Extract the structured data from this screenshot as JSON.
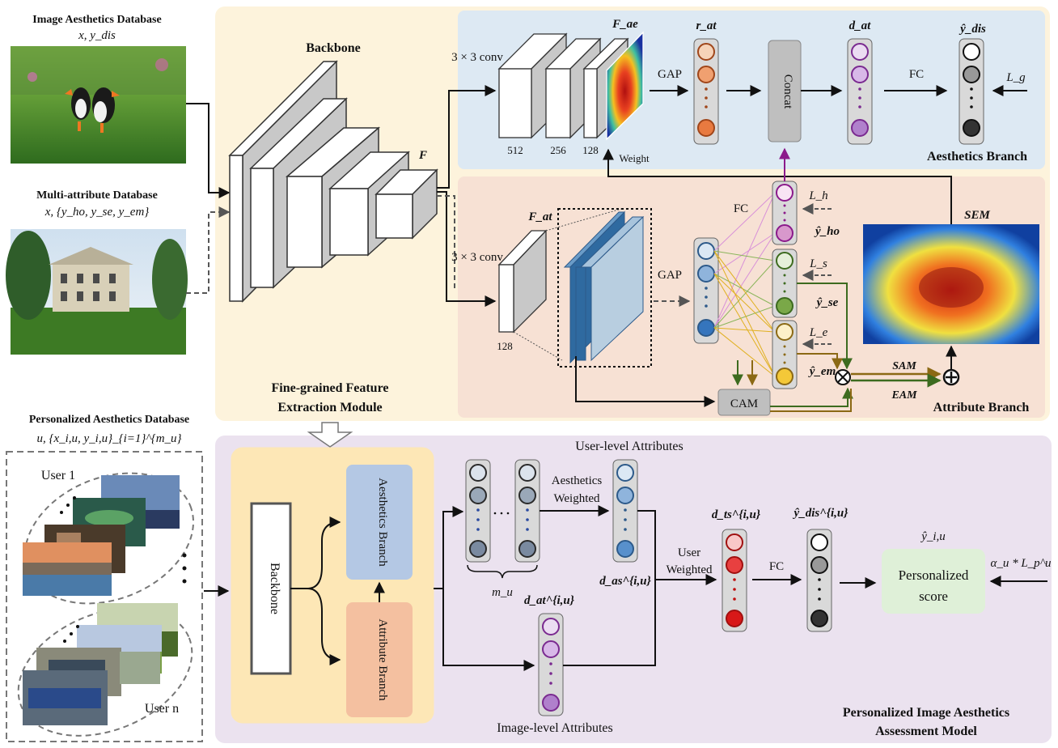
{
  "datasets": {
    "image_aesthetics": {
      "title": "Image Aesthetics Database",
      "vars": "x, y_dis"
    },
    "multi_attribute": {
      "title": "Multi-attribute Database",
      "vars": "x, {y_ho, y_se, y_em}"
    },
    "personalized": {
      "title": "Personalized Aesthetics Database",
      "vars": "u, {x_i,u, y_i,u}_{i=1}^{m_u}"
    }
  },
  "users": {
    "first": "User 1",
    "last": "User n"
  },
  "feature_module": {
    "backbone": "Backbone",
    "feature_label": "F",
    "title_line1": "Fine-grained Feature",
    "title_line2": "Extraction Module"
  },
  "aesthetics_branch": {
    "title": "Aesthetics Branch",
    "conv": "3 × 3 conv",
    "channels": [
      "512",
      "256",
      "128"
    ],
    "fae": "F_ae",
    "weight": "Weight",
    "gap": "GAP",
    "rat": "r_at",
    "concat": "Concat",
    "dat": "d_at",
    "fc": "FC",
    "ydis": "ŷ_dis",
    "loss": "L_g"
  },
  "attribute_branch": {
    "title": "Attribute Branch",
    "conv": "3 × 3 conv",
    "channels": "128",
    "fat": "F_at",
    "gap": "GAP",
    "fc": "FC",
    "yho": "ŷ_ho",
    "yse": "ŷ_se",
    "yem": "ŷ_em",
    "lh": "L_h",
    "ls": "L_s",
    "le": "L_e",
    "cam": "CAM",
    "sam": "SAM",
    "eam": "EAM",
    "sem": "SEM"
  },
  "personalized_model": {
    "backbone": "Backbone",
    "aesthetics_branch": "Aesthetics Branch",
    "attribute_branch": "Attribute Branch",
    "user_level": "User-level Attributes",
    "image_level": "Image-level Attributes",
    "aes_weighted_1": "Aesthetics",
    "aes_weighted_2": "Weighted",
    "mu": "m_u",
    "das": "d_as^{i,u}",
    "dat": "d_at^{i,u}",
    "user_weighted_1": "User",
    "user_weighted_2": "Weighted",
    "dts": "d_ts^{i,u}",
    "fc": "FC",
    "ydis": "ŷ_dis^{i,u}",
    "yiu": "ŷ_i,u",
    "score_1": "Personalized",
    "score_2": "score",
    "loss": "α_u * L_p^u",
    "title_line1": "Personalized Image Aesthetics",
    "title_line2": "Assessment Model"
  }
}
